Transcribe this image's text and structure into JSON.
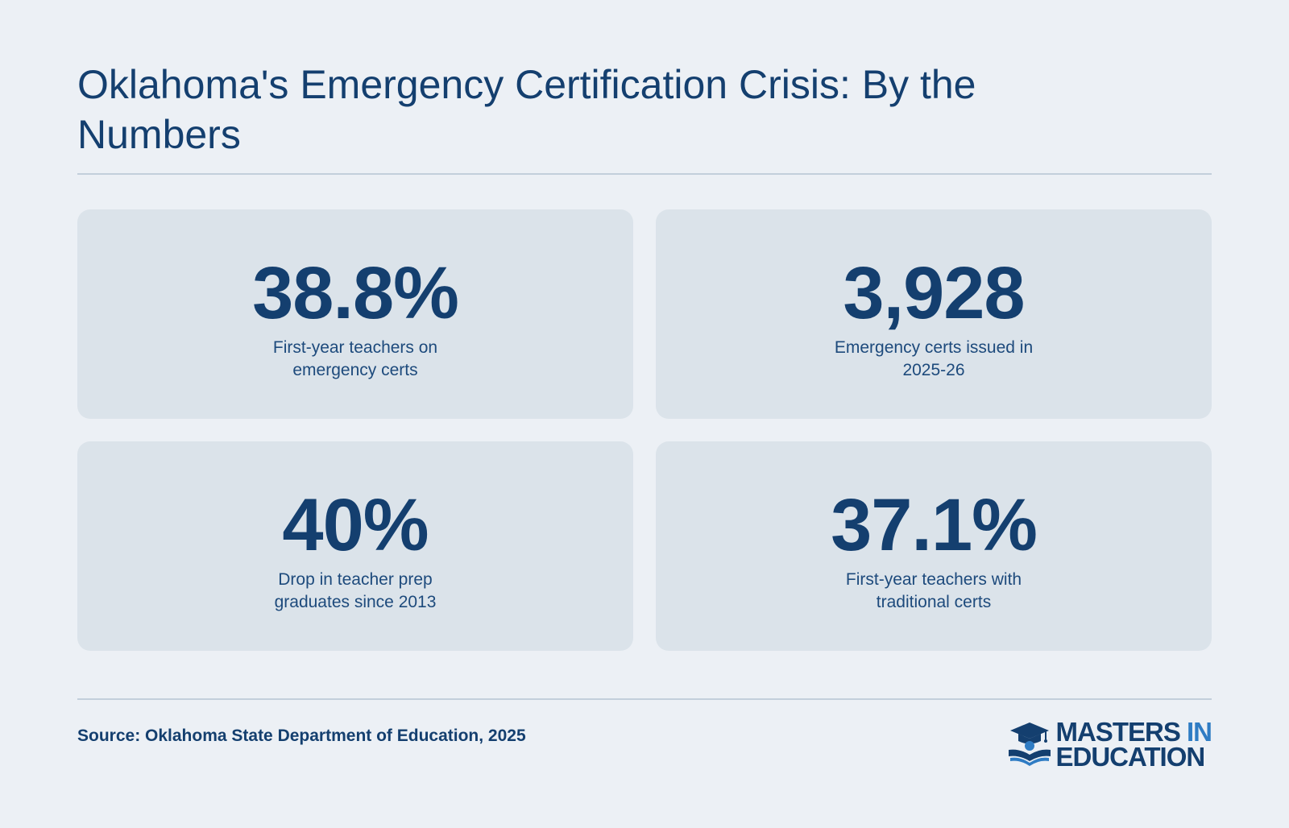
{
  "header": {
    "title": "Oklahoma's Emergency Certification Crisis: By the Numbers"
  },
  "stats": [
    {
      "value": "38.8%",
      "label": "First-year teachers on emergency certs"
    },
    {
      "value": "3,928",
      "label": "Emergency certs issued in 2025-26"
    },
    {
      "value": "40%",
      "label": "Drop in teacher prep graduates since 2013"
    },
    {
      "value": "37.1%",
      "label": "First-year teachers with traditional certs"
    }
  ],
  "footer": {
    "source": "Source: Oklahoma State Department of Education, 2025",
    "logo": {
      "line1_main": "MASTERS",
      "line1_accent": "IN",
      "line2": "EDUCATION",
      "icon": "graduation-cap-book-icon"
    }
  },
  "colors": {
    "background": "#ecf0f5",
    "card": "#dbe3ea",
    "primary": "#143f6f",
    "accent": "#2f7cc4",
    "rule": "#c3cfdb"
  }
}
